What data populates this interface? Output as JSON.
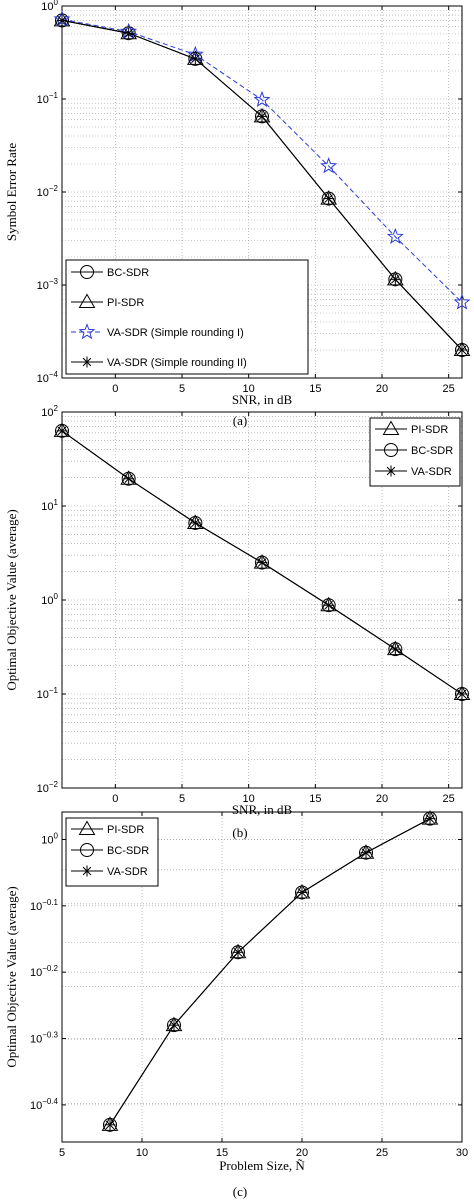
{
  "chart_data": [
    {
      "type": "line",
      "caption": "(a)",
      "xlabel": "SNR, in dB",
      "ylabel": "Symbol Error Rate",
      "xlim": [
        -4,
        26
      ],
      "ylim": [
        0.0001,
        1
      ],
      "yscale": "log",
      "grid": true,
      "legend_position": "bottom-left",
      "x_ticks": [
        "0",
        "5",
        "10",
        "15",
        "20",
        "25"
      ],
      "y_ticks": [
        "10^0",
        "10^-1",
        "10^-2",
        "10^-3",
        "10^-4"
      ],
      "x": [
        -4,
        1,
        6,
        11,
        16,
        21,
        26
      ],
      "series": [
        {
          "name": "BC-SDR",
          "marker": "circle",
          "style": "solid",
          "color": "#000000",
          "values": [
            0.7,
            0.51,
            0.27,
            0.065,
            0.0085,
            0.00115,
            0.0002
          ]
        },
        {
          "name": "PI-SDR",
          "marker": "triangle",
          "style": "solid",
          "color": "#000000",
          "values": [
            0.7,
            0.51,
            0.27,
            0.065,
            0.0085,
            0.00115,
            0.0002
          ]
        },
        {
          "name": "VA-SDR (Simple rounding I)",
          "marker": "star",
          "style": "dashed",
          "color": "#2a3bd6",
          "values": [
            0.72,
            0.53,
            0.3,
            0.098,
            0.019,
            0.0033,
            0.00065
          ]
        },
        {
          "name": "VA-SDR (Simple rounding II)",
          "marker": "asterisk",
          "style": "solid",
          "color": "#000000",
          "values": [
            0.7,
            0.51,
            0.27,
            0.065,
            0.0085,
            0.00115,
            0.0002
          ]
        }
      ]
    },
    {
      "type": "line",
      "caption": "(b)",
      "xlabel": "SNR, in dB",
      "ylabel": "Optimal Objective Value (average)",
      "xlim": [
        -4,
        26
      ],
      "ylim": [
        0.01,
        100
      ],
      "yscale": "log",
      "grid": true,
      "legend_position": "top-right",
      "x_ticks": [
        "0",
        "5",
        "10",
        "15",
        "20",
        "25"
      ],
      "y_ticks": [
        "10^2",
        "10^1",
        "10^0",
        "10^-1",
        "10^-2"
      ],
      "x": [
        -4,
        1,
        6,
        11,
        16,
        21,
        26
      ],
      "series": [
        {
          "name": "PI-SDR",
          "marker": "triangle",
          "style": "solid",
          "color": "#000000",
          "values": [
            63,
            19.5,
            6.6,
            2.5,
            0.88,
            0.3,
            0.1
          ]
        },
        {
          "name": "BC-SDR",
          "marker": "circle",
          "style": "solid",
          "color": "#000000",
          "values": [
            63,
            19.5,
            6.6,
            2.5,
            0.88,
            0.3,
            0.1
          ]
        },
        {
          "name": "VA-SDR",
          "marker": "asterisk",
          "style": "solid",
          "color": "#000000",
          "values": [
            63,
            19.5,
            6.6,
            2.5,
            0.88,
            0.3,
            0.1
          ]
        }
      ]
    },
    {
      "type": "line",
      "caption": "(c)",
      "xlabel": "Problem Size, Ñ",
      "ylabel": "Optimal Objective Value (average)",
      "xlim": [
        5,
        30
      ],
      "ylim": [
        0.35,
        1.1
      ],
      "yscale": "log",
      "grid": true,
      "legend_position": "top-left",
      "x_ticks": [
        "5",
        "10",
        "15",
        "20",
        "25",
        "30"
      ],
      "y_ticks": [
        "10^0",
        "10^-0.1",
        "10^-0.2",
        "10^-0.3",
        "10^-0.4"
      ],
      "x": [
        8,
        12,
        16,
        20,
        24,
        28
      ],
      "series": [
        {
          "name": "PI-SDR",
          "marker": "triangle",
          "style": "solid",
          "color": "#000000",
          "values": [
            0.3715,
            0.525,
            0.676,
            0.832,
            0.955,
            1.075
          ]
        },
        {
          "name": "BC-SDR",
          "marker": "circle",
          "style": "solid",
          "color": "#000000",
          "values": [
            0.3715,
            0.525,
            0.676,
            0.832,
            0.955,
            1.075
          ]
        },
        {
          "name": "VA-SDR",
          "marker": "asterisk",
          "style": "solid",
          "color": "#000000",
          "values": [
            0.3715,
            0.525,
            0.676,
            0.832,
            0.955,
            1.075
          ]
        }
      ]
    }
  ]
}
